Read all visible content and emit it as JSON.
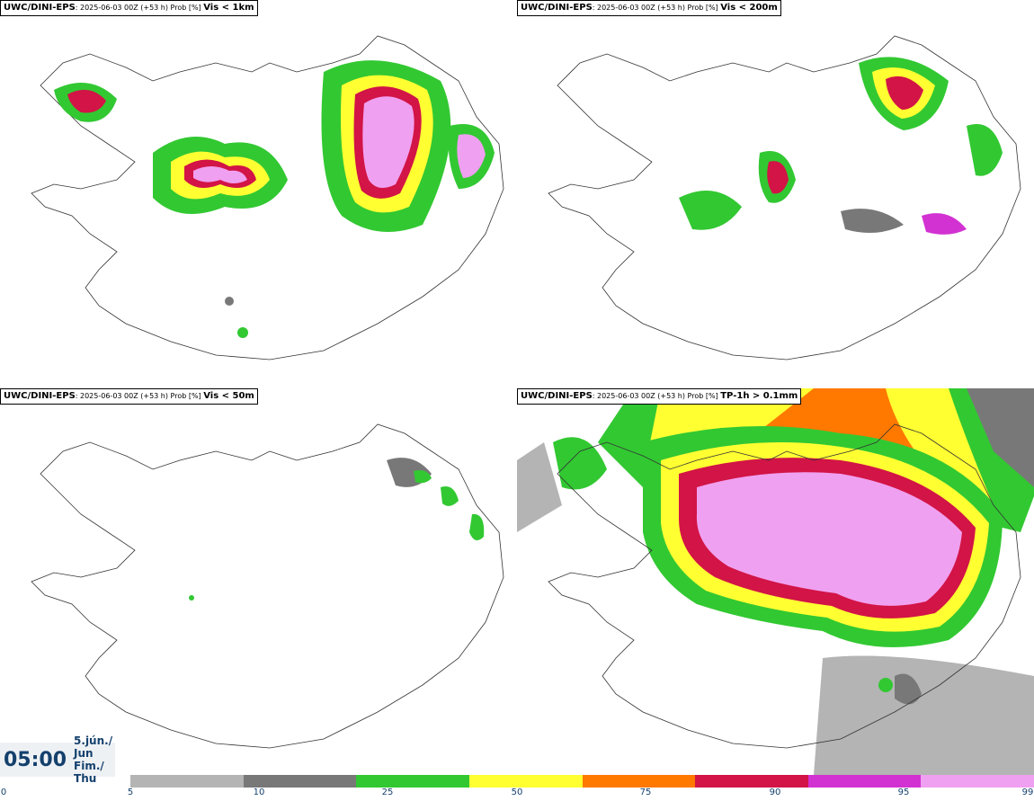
{
  "panels": [
    {
      "source": "UWC/DINI-EPS",
      "run": ": 2025-06-03 00Z (+53 h) Prob [%] ",
      "variable": "Vis < 1km"
    },
    {
      "source": "UWC/DINI-EPS",
      "run": ": 2025-06-03 00Z (+53 h) Prob [%] ",
      "variable": "Vis < 200m"
    },
    {
      "source": "UWC/DINI-EPS",
      "run": ": 2025-06-03 00Z (+53 h) Prob [%] ",
      "variable": "Vis < 50m"
    },
    {
      "source": "UWC/DINI-EPS",
      "run": ": 2025-06-03 00Z (+53 h) Prob [%] ",
      "variable": "TP-1h > 0.1mm"
    }
  ],
  "valid_time": {
    "time": "05:00",
    "date_line1": "5.jún./ Jun",
    "date_line2": "Fim./ Thu"
  },
  "legend": {
    "ticks": [
      "0",
      "5",
      "10",
      "25",
      "50",
      "75",
      "90",
      "95",
      "99"
    ],
    "colors": [
      "#b4b4b4",
      "#787878",
      "#32c832",
      "#ffff32",
      "#ff7800",
      "#d21446",
      "#d232d2",
      "#f0a0f0"
    ]
  }
}
